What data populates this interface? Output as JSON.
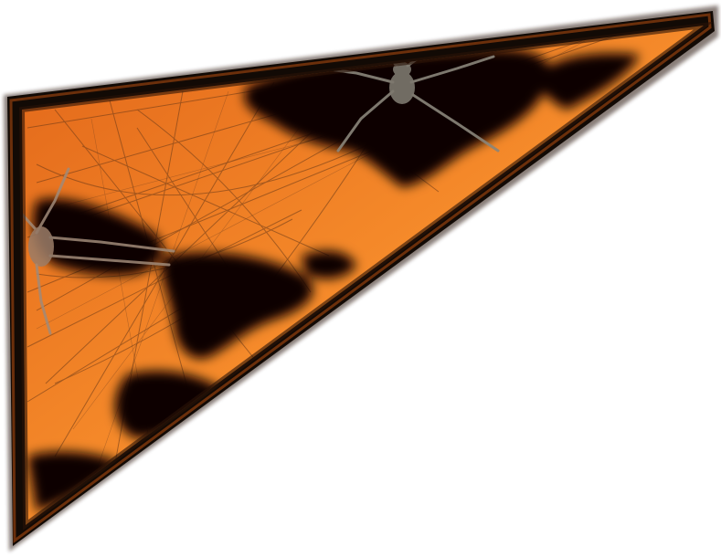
{
  "graphic": {
    "shape": "triangle-pennant",
    "theme": "halloween-spider-web",
    "colors": {
      "background": "#ffffff",
      "panel_orange": "#f07a1e",
      "panel_orange_dark": "#c85a0e",
      "frame_dark": "#140c06",
      "frame_rim": "#5a2a0c",
      "shadow": "#000000",
      "web_strand": "#6a3a18",
      "spider": "#8a857a"
    },
    "icons": [
      "spider-icon",
      "spider-icon",
      "cobweb-texture"
    ]
  }
}
